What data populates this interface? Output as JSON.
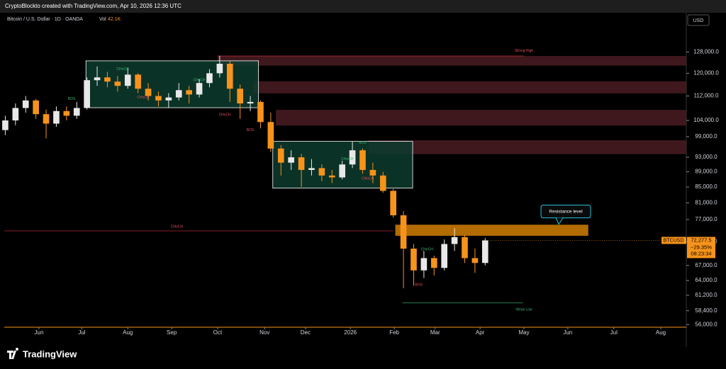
{
  "header": {
    "title": "CryptoBlockto created with TradingView.com, Apr 10, 2026 12:36 UTC"
  },
  "footer": {
    "brand": "TradingView"
  },
  "chart_data": {
    "type": "candlestick",
    "title": "Bitcoin / U.S. Dollar · 1D · OANDA",
    "volume_label": "Vol",
    "volume": "42.1K",
    "currency": "USD",
    "up_color": "#e8e8e8",
    "down_color": "#f7931a",
    "x": [
      0,
      1,
      2,
      3,
      4,
      5,
      6,
      7,
      8,
      9,
      10,
      11,
      12,
      13,
      14,
      15,
      16,
      17,
      18,
      19,
      20,
      21,
      22,
      23,
      24,
      25,
      26,
      27,
      28,
      29,
      30,
      31,
      32,
      33,
      34,
      35,
      36,
      37,
      38,
      39,
      40,
      41,
      42,
      43,
      44,
      45,
      46,
      47
    ],
    "open": [
      101000,
      104000,
      108000,
      110500,
      106000,
      103000,
      107000,
      105500,
      108000,
      117500,
      118500,
      117000,
      115500,
      119500,
      114500,
      112000,
      110500,
      111500,
      114000,
      112500,
      116500,
      120000,
      123500,
      114500,
      109500,
      110000,
      103500,
      95500,
      91500,
      93000,
      89500,
      90000,
      88000,
      87500,
      91000,
      95000,
      89500,
      88000,
      84000,
      78000,
      70500,
      66000,
      68500,
      66500,
      71500,
      73000,
      68500,
      67500
    ],
    "high": [
      105500,
      109500,
      112000,
      111000,
      107500,
      108500,
      108500,
      110000,
      118500,
      122500,
      120500,
      119000,
      122000,
      120000,
      116500,
      113500,
      113000,
      116500,
      115500,
      118000,
      121500,
      126500,
      124500,
      116000,
      112000,
      110500,
      106500,
      96500,
      95000,
      94000,
      92500,
      91000,
      89500,
      92000,
      97500,
      95500,
      91500,
      89000,
      84500,
      79000,
      71500,
      70000,
      69000,
      72500,
      75000,
      73500,
      70500,
      72800
    ],
    "low": [
      99500,
      102500,
      106500,
      104500,
      98500,
      102000,
      104000,
      104500,
      107500,
      115500,
      115000,
      113500,
      114500,
      113000,
      110500,
      108500,
      108000,
      110500,
      109500,
      111500,
      115000,
      118500,
      110000,
      104500,
      107000,
      101500,
      94500,
      88000,
      89500,
      85000,
      88000,
      86500,
      86000,
      87000,
      90000,
      88500,
      86000,
      83500,
      77500,
      62500,
      63000,
      64500,
      65000,
      66000,
      70000,
      67500,
      65500,
      67000
    ],
    "close": [
      104000,
      108000,
      110500,
      106000,
      103000,
      107000,
      105500,
      108000,
      117500,
      118500,
      117000,
      115500,
      119500,
      114500,
      112000,
      110500,
      111500,
      114000,
      112500,
      116500,
      120000,
      123500,
      114500,
      109500,
      110000,
      103500,
      95500,
      91500,
      93000,
      89500,
      90000,
      88000,
      87500,
      91000,
      95000,
      89500,
      88000,
      84000,
      78000,
      70500,
      66000,
      68500,
      66500,
      71500,
      73000,
      68500,
      67500,
      72277.5
    ],
    "xlim": [
      -0.1,
      66.7
    ],
    "xticks": [
      {
        "value": 3.3,
        "label": "Jun"
      },
      {
        "value": 7.5,
        "label": "Jul"
      },
      {
        "value": 12.0,
        "label": "Aug"
      },
      {
        "value": 16.3,
        "label": "Sep"
      },
      {
        "value": 20.8,
        "label": "Oct"
      },
      {
        "value": 25.4,
        "label": "Nov"
      },
      {
        "value": 29.4,
        "label": "Dec"
      },
      {
        "value": 33.8,
        "label": "2026"
      },
      {
        "value": 38.1,
        "label": "Feb"
      },
      {
        "value": 42.1,
        "label": "Mar"
      },
      {
        "value": 46.5,
        "label": "Apr"
      },
      {
        "value": 50.8,
        "label": "May"
      },
      {
        "value": 55.1,
        "label": "Jun"
      },
      {
        "value": 59.6,
        "label": "Jul"
      },
      {
        "value": 64.2,
        "label": "Aug"
      }
    ],
    "ylim": [
      55550,
      138700
    ],
    "log_scale": true,
    "yticks": [
      {
        "value": 128000,
        "label": "128,000.0"
      },
      {
        "value": 120000,
        "label": "120,000.0"
      },
      {
        "value": 112000,
        "label": "112,000.0"
      },
      {
        "value": 104000,
        "label": "104,000.0"
      },
      {
        "value": 99000,
        "label": "99,000.0"
      },
      {
        "value": 93000,
        "label": "93,000.0"
      },
      {
        "value": 89000,
        "label": "89,000.0"
      },
      {
        "value": 85000,
        "label": "85,000.0"
      },
      {
        "value": 81000,
        "label": "81,000.0"
      },
      {
        "value": 77000,
        "label": "77,000.0"
      },
      {
        "value": 72000,
        "label": "72,000.0"
      },
      {
        "value": 67000,
        "label": "67,000.0"
      },
      {
        "value": 64000,
        "label": "64,000.0"
      },
      {
        "value": 61200,
        "label": "61,200.0"
      },
      {
        "value": 58400,
        "label": "58,400.0"
      },
      {
        "value": 56000,
        "label": "56,000.0"
      }
    ],
    "zones": [
      {
        "x0": 20.8,
        "x1": 66.7,
        "low": 122800,
        "high": 126450,
        "color": "#4a1c22"
      },
      {
        "x0": 24.3,
        "x1": 66.7,
        "low": 112900,
        "high": 117100,
        "color": "#4a1c22"
      },
      {
        "x0": 26.5,
        "x1": 66.7,
        "low": 102400,
        "high": 107400,
        "color": "#4a1c22"
      },
      {
        "x0": 35.6,
        "x1": 66.7,
        "low": 93900,
        "high": 97900,
        "color": "#4a1c22"
      },
      {
        "x0": 7.9,
        "x1": 24.8,
        "low": 108100,
        "high": 124600,
        "color": "#0d3b2e"
      },
      {
        "x0": 26.2,
        "x1": 39.9,
        "low": 84700,
        "high": 97600,
        "color": "#0d3b2e"
      },
      {
        "x0": 38.2,
        "x1": 57.1,
        "low": 73300,
        "high": 75800,
        "color": "#c77800"
      }
    ],
    "levels": [
      {
        "x0": -0.1,
        "x1": 38.0,
        "price": 74400,
        "color": "#b22833"
      },
      {
        "x0": 38.9,
        "x1": 50.7,
        "price": 59800,
        "color": "#2e8b57"
      },
      {
        "x0": 20.8,
        "x1": 50.8,
        "price": 126450,
        "color": "#b22833"
      }
    ],
    "annotations": [
      {
        "text": "Strong High",
        "x": 50.8,
        "y": 128500,
        "color": "#e0505a"
      },
      {
        "text": "Weak Low",
        "x": 50.8,
        "y": 58600,
        "color": "#3cb371"
      },
      {
        "text": "CHoCH",
        "x": 16.8,
        "y": 75300,
        "color": "#e0505a"
      },
      {
        "text": "CHoCH",
        "x": 11.5,
        "y": 121500,
        "color": "#3cb371"
      },
      {
        "text": "CHoCH",
        "x": 19.0,
        "y": 117500,
        "color": "#3cb371"
      },
      {
        "text": "CHoCH",
        "x": 13.5,
        "y": 111500,
        "color": "#e0505a"
      },
      {
        "text": "CHoCH",
        "x": 21.5,
        "y": 105800,
        "color": "#e0505a"
      },
      {
        "text": "BOS",
        "x": 24.0,
        "y": 101000,
        "color": "#e0505a"
      },
      {
        "text": "BOS",
        "x": 6.5,
        "y": 111000,
        "color": "#3cb371"
      },
      {
        "text": "CHoCH",
        "x": 33.5,
        "y": 92500,
        "color": "#3cb371"
      },
      {
        "text": "CHoCH",
        "x": 35.5,
        "y": 87200,
        "color": "#e0505a"
      },
      {
        "text": "BOS",
        "x": 35.0,
        "y": 97200,
        "color": "#3cb371"
      },
      {
        "text": "CHoCH",
        "x": 41.3,
        "y": 70300,
        "color": "#3cb371"
      },
      {
        "text": "BOS",
        "x": 40.5,
        "y": 63200,
        "color": "#e0505a"
      }
    ],
    "callout": {
      "text": "Resistance level",
      "x": 54.9,
      "y": 78900
    },
    "price_box": {
      "symbol": "BTCUSD",
      "price": {
        "value": 72277.5,
        "label": "72,277.5"
      },
      "change": "−29.35%",
      "countdown": "08:23:34"
    }
  }
}
